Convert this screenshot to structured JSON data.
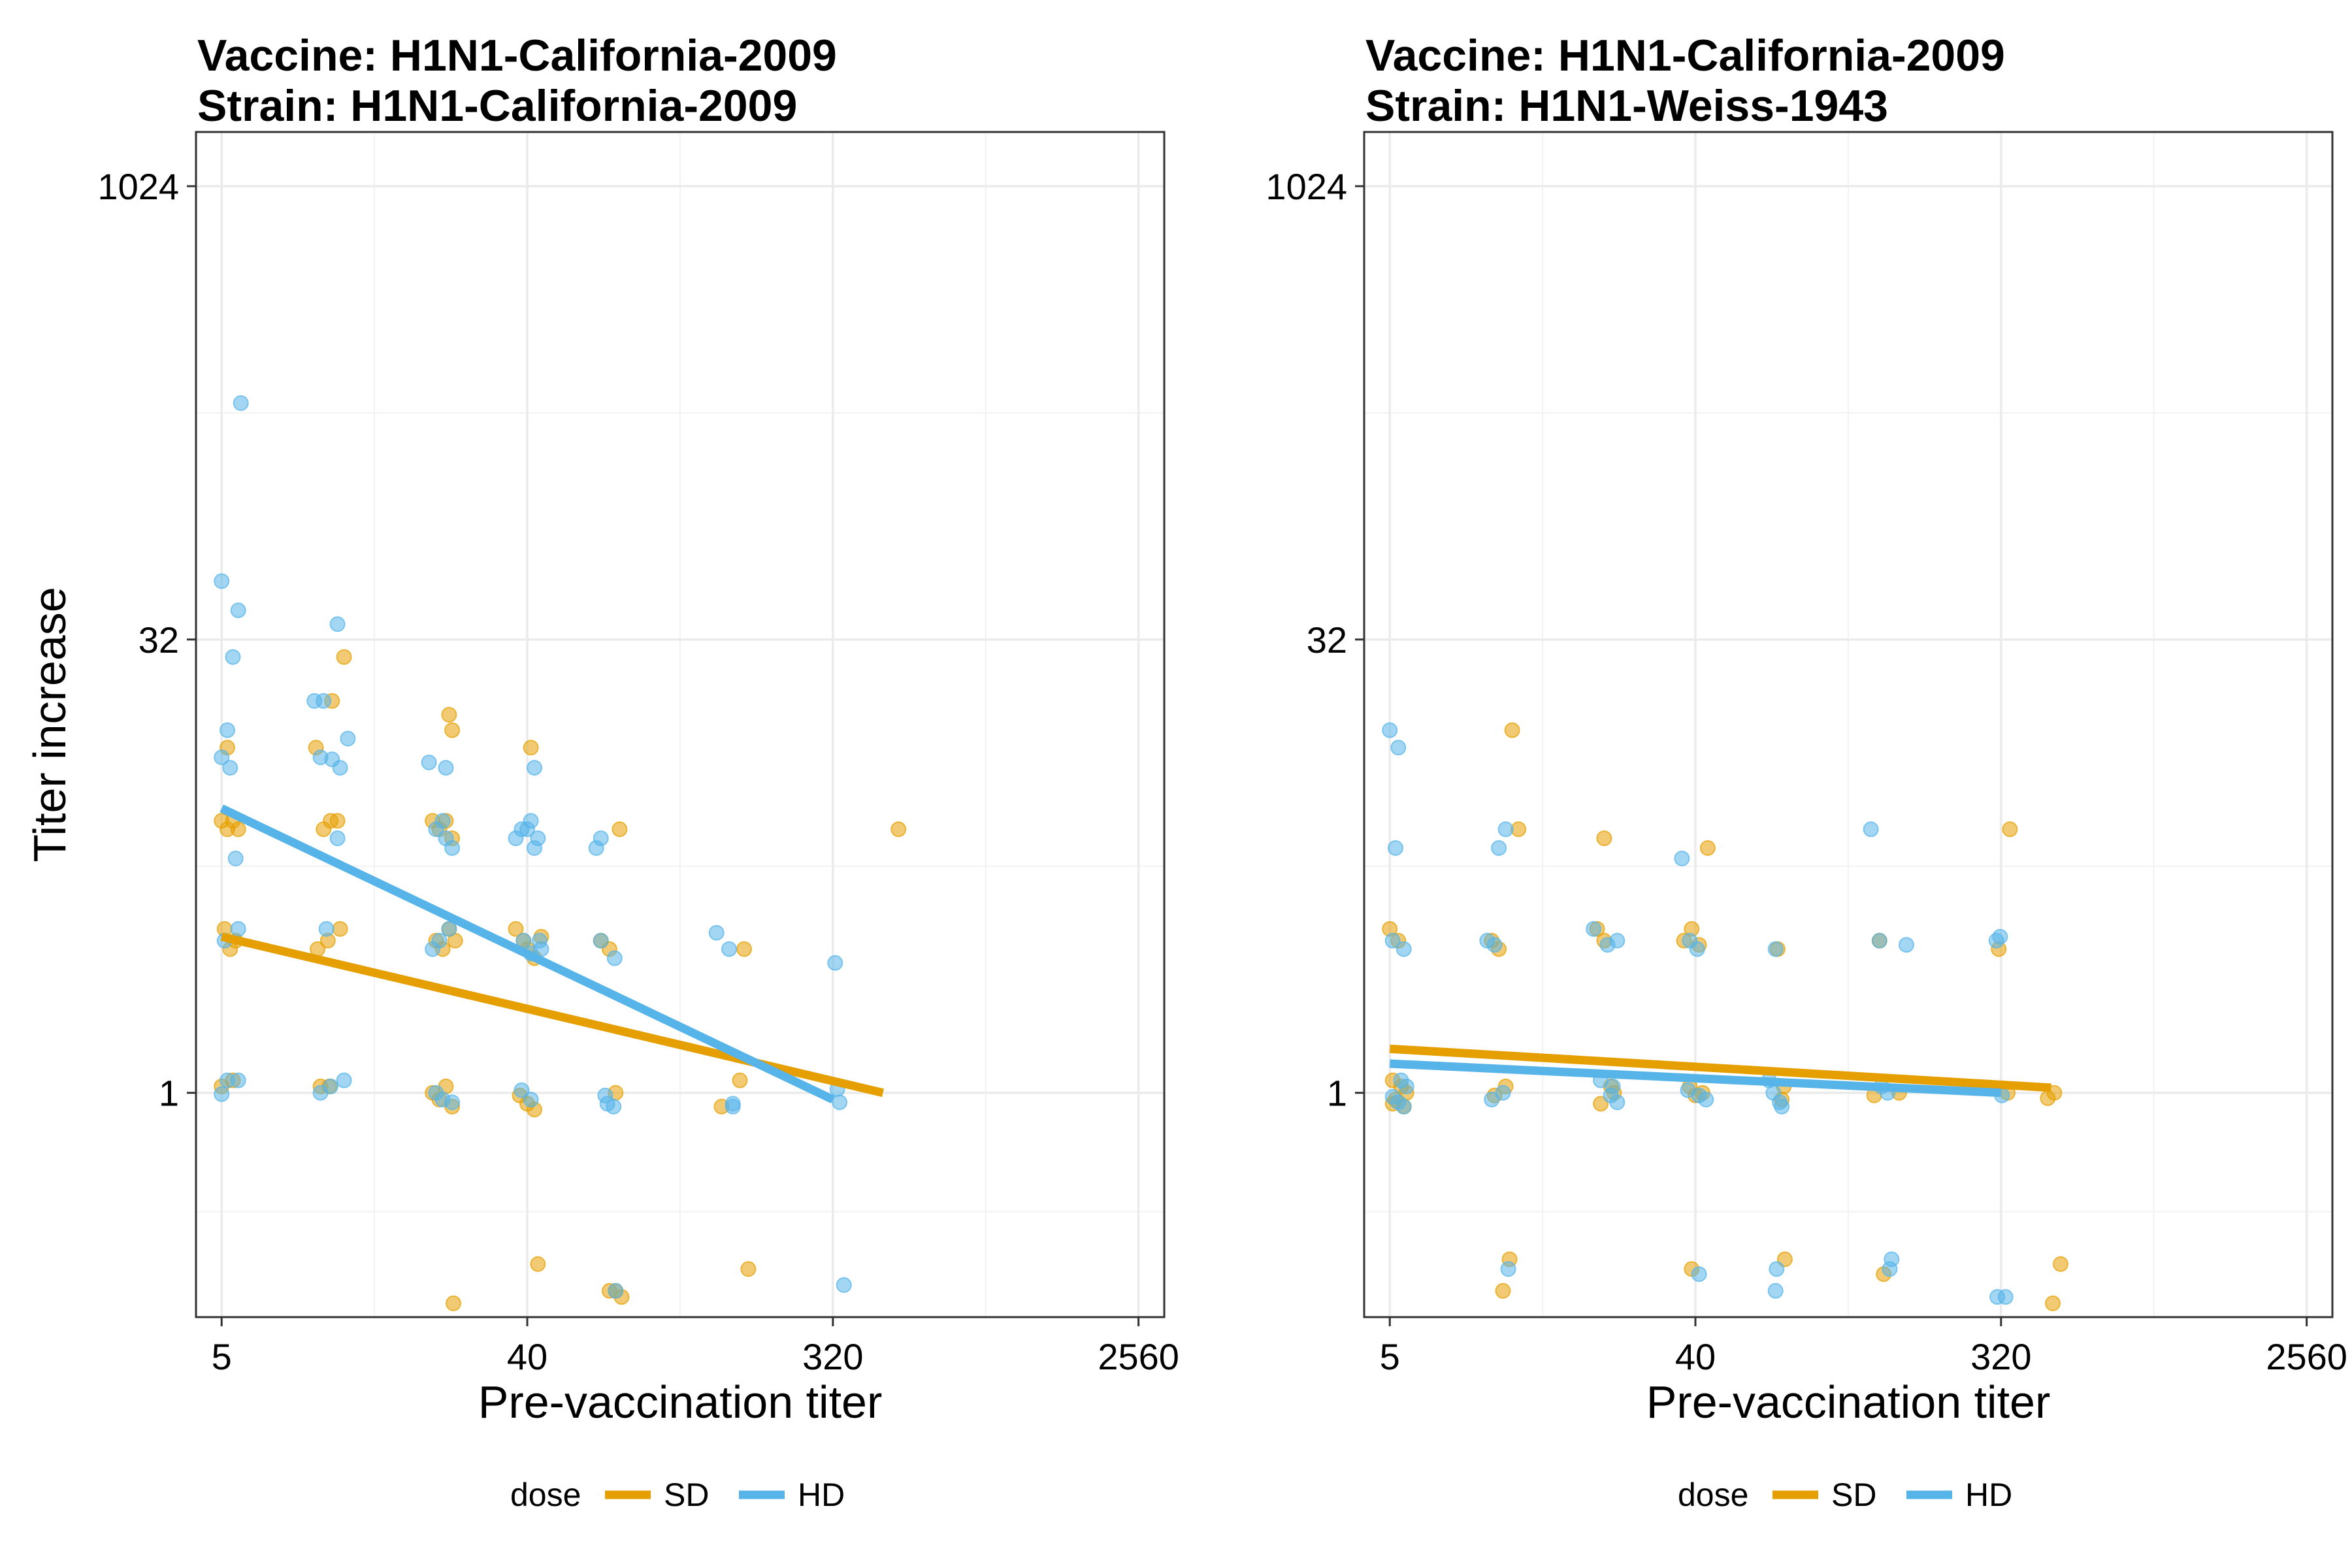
{
  "chart_data": [
    {
      "type": "scatter",
      "title_lines": [
        "Vaccine: H1N1-California-2009",
        "Strain: H1N1-California-2009"
      ],
      "xlabel": "Pre-vaccination titer",
      "ylabel": "Titer increase",
      "x_scale": "log2",
      "y_scale": "log2",
      "xlim": [
        4.2,
        3050
      ],
      "ylim": [
        0.18,
        1550
      ],
      "x_ticks": [
        5,
        40,
        320,
        2560
      ],
      "x_tick_labels": [
        "5",
        "40",
        "320",
        "2560"
      ],
      "y_ticks": [
        1,
        32,
        1024
      ],
      "y_tick_labels": [
        "1",
        "32",
        "1024"
      ],
      "grid": true,
      "legend": {
        "title": "dose",
        "position": "bottom",
        "entries": [
          "SD",
          "HD"
        ]
      },
      "colors": {
        "SD": "#E69F00",
        "HD": "#56B4E9"
      },
      "series": [
        {
          "name": "SD",
          "color": "#E69F00",
          "fit_line": [
            [
              5,
              3.3
            ],
            [
              450,
              1.0
            ]
          ],
          "points": [
            [
              5,
              8
            ],
            [
              5.2,
              7.5
            ],
            [
              5.4,
              8
            ],
            [
              5.6,
              7.5
            ],
            [
              5.1,
              3.5
            ],
            [
              5.3,
              3
            ],
            [
              5.5,
              3.2
            ],
            [
              5,
              1.05
            ],
            [
              5.4,
              1.1
            ],
            [
              5.2,
              14
            ],
            [
              9.5,
              14
            ],
            [
              10.5,
              8
            ],
            [
              10,
              7.5
            ],
            [
              11,
              8
            ],
            [
              9.6,
              3
            ],
            [
              10.3,
              3.2
            ],
            [
              11.2,
              3.5
            ],
            [
              9.8,
              1.05
            ],
            [
              10.4,
              1.05
            ],
            [
              10.6,
              20
            ],
            [
              11.5,
              28
            ],
            [
              21,
              8
            ],
            [
              22,
              7.5
            ],
            [
              23,
              8
            ],
            [
              24,
              7
            ],
            [
              21.5,
              3.2
            ],
            [
              22.5,
              3
            ],
            [
              23.5,
              3.5
            ],
            [
              24.5,
              3.2
            ],
            [
              21,
              1.0
            ],
            [
              22,
              0.95
            ],
            [
              23,
              1.05
            ],
            [
              24,
              0.9
            ],
            [
              23.5,
              18
            ],
            [
              24,
              16
            ],
            [
              24.2,
              0.2
            ],
            [
              37,
              3.5
            ],
            [
              39,
              3.2
            ],
            [
              40,
              3
            ],
            [
              42,
              2.8
            ],
            [
              44,
              3.3
            ],
            [
              38,
              0.98
            ],
            [
              40,
              0.92
            ],
            [
              42,
              0.88
            ],
            [
              41,
              14
            ],
            [
              43,
              0.27
            ],
            [
              66,
              3.2
            ],
            [
              70,
              3
            ],
            [
              73,
              1.0
            ],
            [
              70,
              0.22
            ],
            [
              73,
              0.22
            ],
            [
              76,
              0.21
            ],
            [
              75,
              7.5
            ],
            [
              150,
              0.9
            ],
            [
              170,
              1.1
            ],
            [
              175,
              3
            ],
            [
              180,
              0.26
            ],
            [
              500,
              7.5
            ]
          ]
        },
        {
          "name": "HD",
          "color": "#56B4E9",
          "fit_line": [
            [
              5,
              8.8
            ],
            [
              320,
              0.95
            ]
          ],
          "points": [
            [
              5,
              50
            ],
            [
              5.2,
              16
            ],
            [
              5.4,
              28
            ],
            [
              5.5,
              6
            ],
            [
              5,
              13
            ],
            [
              5.3,
              12
            ],
            [
              5.1,
              3.2
            ],
            [
              5.6,
              3.5
            ],
            [
              5.2,
              1.1
            ],
            [
              5.6,
              1.1
            ],
            [
              5,
              0.99
            ],
            [
              5.7,
              195
            ],
            [
              5.6,
              40
            ],
            [
              9.4,
              20
            ],
            [
              10,
              20
            ],
            [
              9.8,
              13
            ],
            [
              10.6,
              12.8
            ],
            [
              11,
              7
            ],
            [
              10.2,
              3.5
            ],
            [
              9.8,
              1.0
            ],
            [
              10.5,
              1.05
            ],
            [
              11.5,
              1.1
            ],
            [
              11.2,
              12
            ],
            [
              11.8,
              15
            ],
            [
              11,
              36
            ],
            [
              20.5,
              12.5
            ],
            [
              21.5,
              7.5
            ],
            [
              22.5,
              8
            ],
            [
              23,
              7
            ],
            [
              24,
              6.5
            ],
            [
              21,
              3
            ],
            [
              22,
              3.2
            ],
            [
              23.5,
              3.5
            ],
            [
              21.5,
              1.0
            ],
            [
              22.5,
              0.95
            ],
            [
              24,
              0.93
            ],
            [
              23,
              12
            ],
            [
              37,
              7
            ],
            [
              38.5,
              7.5
            ],
            [
              40,
              7.5
            ],
            [
              41,
              8
            ],
            [
              42,
              6.5
            ],
            [
              43,
              7
            ],
            [
              39,
              3.2
            ],
            [
              41,
              2.9
            ],
            [
              43.5,
              3.2
            ],
            [
              44,
              3
            ],
            [
              38.5,
              1.02
            ],
            [
              41,
              0.95
            ],
            [
              42,
              12
            ],
            [
              64,
              6.5
            ],
            [
              66,
              7
            ],
            [
              68,
              0.98
            ],
            [
              69,
              0.92
            ],
            [
              66,
              3.2
            ],
            [
              72,
              0.9
            ],
            [
              72.5,
              2.8
            ],
            [
              73,
              0.22
            ],
            [
              145,
              3.4
            ],
            [
              158,
              3
            ],
            [
              162,
              0.9
            ],
            [
              162,
              0.92
            ],
            [
              325,
              2.7
            ],
            [
              330,
              1.03
            ],
            [
              335,
              0.93
            ],
            [
              345,
              0.23
            ]
          ]
        }
      ]
    },
    {
      "type": "scatter",
      "title_lines": [
        "Vaccine: H1N1-California-2009",
        "Strain: H1N1-Weiss-1943"
      ],
      "xlabel": "Pre-vaccination titer",
      "ylabel": "",
      "x_scale": "log2",
      "y_scale": "log2",
      "xlim": [
        4.2,
        3050
      ],
      "ylim": [
        0.18,
        1550
      ],
      "x_ticks": [
        5,
        40,
        320,
        2560
      ],
      "x_tick_labels": [
        "5",
        "40",
        "320",
        "2560"
      ],
      "y_ticks": [
        1,
        32,
        1024
      ],
      "y_tick_labels": [
        "1",
        "32",
        "1024"
      ],
      "grid": true,
      "legend": {
        "title": "dose",
        "position": "bottom",
        "entries": [
          "SD",
          "HD"
        ]
      },
      "colors": {
        "SD": "#E69F00",
        "HD": "#56B4E9"
      },
      "series": [
        {
          "name": "SD",
          "color": "#E69F00",
          "fit_line": [
            [
              5,
              1.4
            ],
            [
              450,
              1.04
            ]
          ],
          "points": [
            [
              5,
              3.5
            ],
            [
              5.3,
              3.2
            ],
            [
              5.1,
              1.1
            ],
            [
              5.4,
              1.05
            ],
            [
              5.6,
              1.0
            ],
            [
              5.2,
              0.95
            ],
            [
              5.5,
              0.9
            ],
            [
              5.1,
              0.92
            ],
            [
              10,
              3.2
            ],
            [
              10.5,
              3
            ],
            [
              11,
              1.05
            ],
            [
              10.2,
              0.98
            ],
            [
              11.5,
              16
            ],
            [
              10.8,
              0.22
            ],
            [
              11.3,
              0.28
            ],
            [
              12,
              7.5
            ],
            [
              20.5,
              3.5
            ],
            [
              21.5,
              3.2
            ],
            [
              22.5,
              1.05
            ],
            [
              21,
              0.92
            ],
            [
              23,
              1.0
            ],
            [
              21.5,
              7
            ],
            [
              37,
              3.2
            ],
            [
              39,
              3.5
            ],
            [
              41,
              3.1
            ],
            [
              38.5,
              1.05
            ],
            [
              40,
              0.98
            ],
            [
              42,
              1.0
            ],
            [
              39,
              0.26
            ],
            [
              43.5,
              6.5
            ],
            [
              70,
              3
            ],
            [
              72,
              0.95
            ],
            [
              73,
              1.05
            ],
            [
              73.5,
              0.28
            ],
            [
              135,
              0.98
            ],
            [
              140,
              3.2
            ],
            [
              144,
              0.25
            ],
            [
              160,
              1.0
            ],
            [
              315,
              3
            ],
            [
              335,
              1.0
            ],
            [
              340,
              7.5
            ],
            [
              440,
              0.96
            ],
            [
              460,
              1.0
            ],
            [
              455,
              0.2
            ],
            [
              480,
              0.27
            ]
          ]
        },
        {
          "name": "HD",
          "color": "#56B4E9",
          "fit_line": [
            [
              5,
              1.25
            ],
            [
              320,
              1.0
            ]
          ],
          "points": [
            [
              5,
              16
            ],
            [
              5.3,
              14
            ],
            [
              5.2,
              6.5
            ],
            [
              5.1,
              3.2
            ],
            [
              5.5,
              3
            ],
            [
              5.4,
              1.1
            ],
            [
              5.6,
              1.05
            ],
            [
              5.1,
              0.97
            ],
            [
              5.3,
              0.93
            ],
            [
              5.5,
              0.9
            ],
            [
              9.7,
              3.2
            ],
            [
              10.2,
              3.1
            ],
            [
              10.8,
              1.0
            ],
            [
              10,
              0.95
            ],
            [
              10.5,
              6.5
            ],
            [
              11,
              7.5
            ],
            [
              11.2,
              0.26
            ],
            [
              20,
              3.5
            ],
            [
              22,
              3.1
            ],
            [
              23.5,
              3.2
            ],
            [
              21,
              1.1
            ],
            [
              22.5,
              0.98
            ],
            [
              23.5,
              0.93
            ],
            [
              22.8,
              1.05
            ],
            [
              36.5,
              6
            ],
            [
              38.5,
              3.2
            ],
            [
              40.5,
              3
            ],
            [
              38,
              1.02
            ],
            [
              41,
              0.98
            ],
            [
              43,
              0.95
            ],
            [
              41,
              0.25
            ],
            [
              69,
              3
            ],
            [
              66,
              1.1
            ],
            [
              68,
              1.0
            ],
            [
              71,
              0.93
            ],
            [
              72,
              0.9
            ],
            [
              69,
              0.22
            ],
            [
              69.5,
              0.26
            ],
            [
              132,
              7.5
            ],
            [
              140,
              3.2
            ],
            [
              142,
              1.05
            ],
            [
              148,
              1.0
            ],
            [
              150,
              0.26
            ],
            [
              152,
              0.28
            ],
            [
              168,
              3.1
            ],
            [
              310,
              3.2
            ],
            [
              318,
              3.3
            ],
            [
              322,
              0.98
            ],
            [
              312,
              0.21
            ],
            [
              330,
              0.21
            ]
          ]
        }
      ]
    }
  ]
}
